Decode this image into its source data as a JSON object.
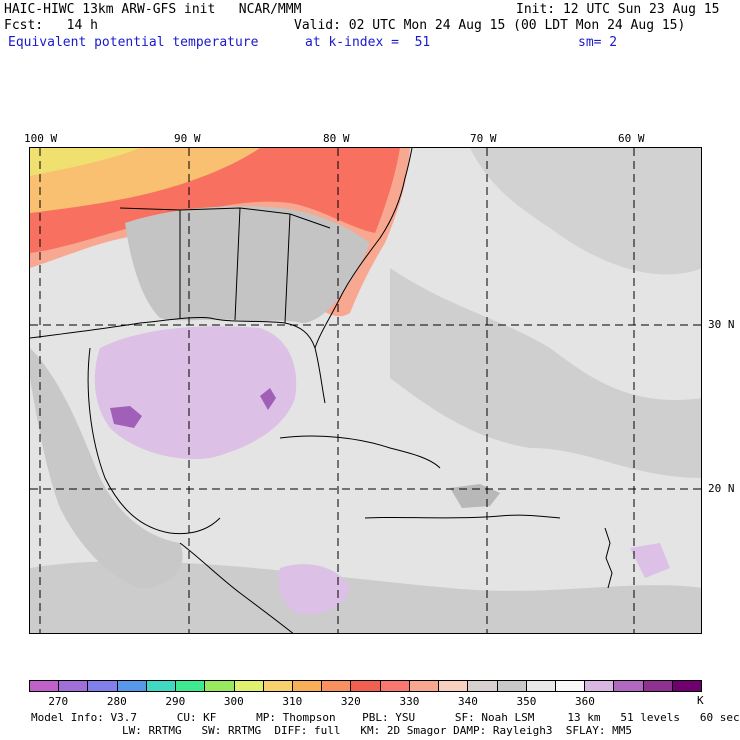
{
  "header": {
    "model_line": "HAIC-HIWC 13km ARW-GFS init   NCAR/MMM",
    "init_line": "Init: 12 UTC Sun 23 Aug 15",
    "fcst_line": "Fcst:   14 h",
    "valid_line": "Valid: 02 UTC Mon 24 Aug 15 (00 LDT Mon 24 Aug 15)",
    "field_name": "Equivalent potential temperature",
    "level_line": "at k-index =  51",
    "smooth_line": "sm= 2"
  },
  "map": {
    "lon_labels": [
      "100 W",
      "90 W",
      "80 W",
      "70 W",
      "60 W"
    ],
    "lat_labels": [
      "30 N",
      "20 N"
    ]
  },
  "colorbar": {
    "unit": "K",
    "tick_labels": [
      "270",
      "280",
      "290",
      "300",
      "310",
      "320",
      "330",
      "340",
      "350",
      "360"
    ],
    "colors": [
      "#c060c8",
      "#a070d8",
      "#8080e8",
      "#5898e8",
      "#40d8c0",
      "#40e890",
      "#98e860",
      "#e0f070",
      "#f8d070",
      "#f8b058",
      "#f89060",
      "#f06050",
      "#f87870",
      "#f8a890",
      "#f8d0c0",
      "#d8d0d0",
      "#c8c8c8",
      "#e8e8e8",
      "#f8f8f8",
      "#d8b8e0",
      "#b068c0",
      "#903090",
      "#700070"
    ]
  },
  "footer": {
    "line1": "Model Info: V3.7      CU: KF      MP: Thompson    PBL: YSU      SF: Noah LSM     13 km   51 levels   60 sec",
    "line2": "LW: RRTMG   SW: RRTMG  DIFF: full   KM: 2D Smagor DAMP: Rayleigh3  SFLAY: MM5"
  }
}
